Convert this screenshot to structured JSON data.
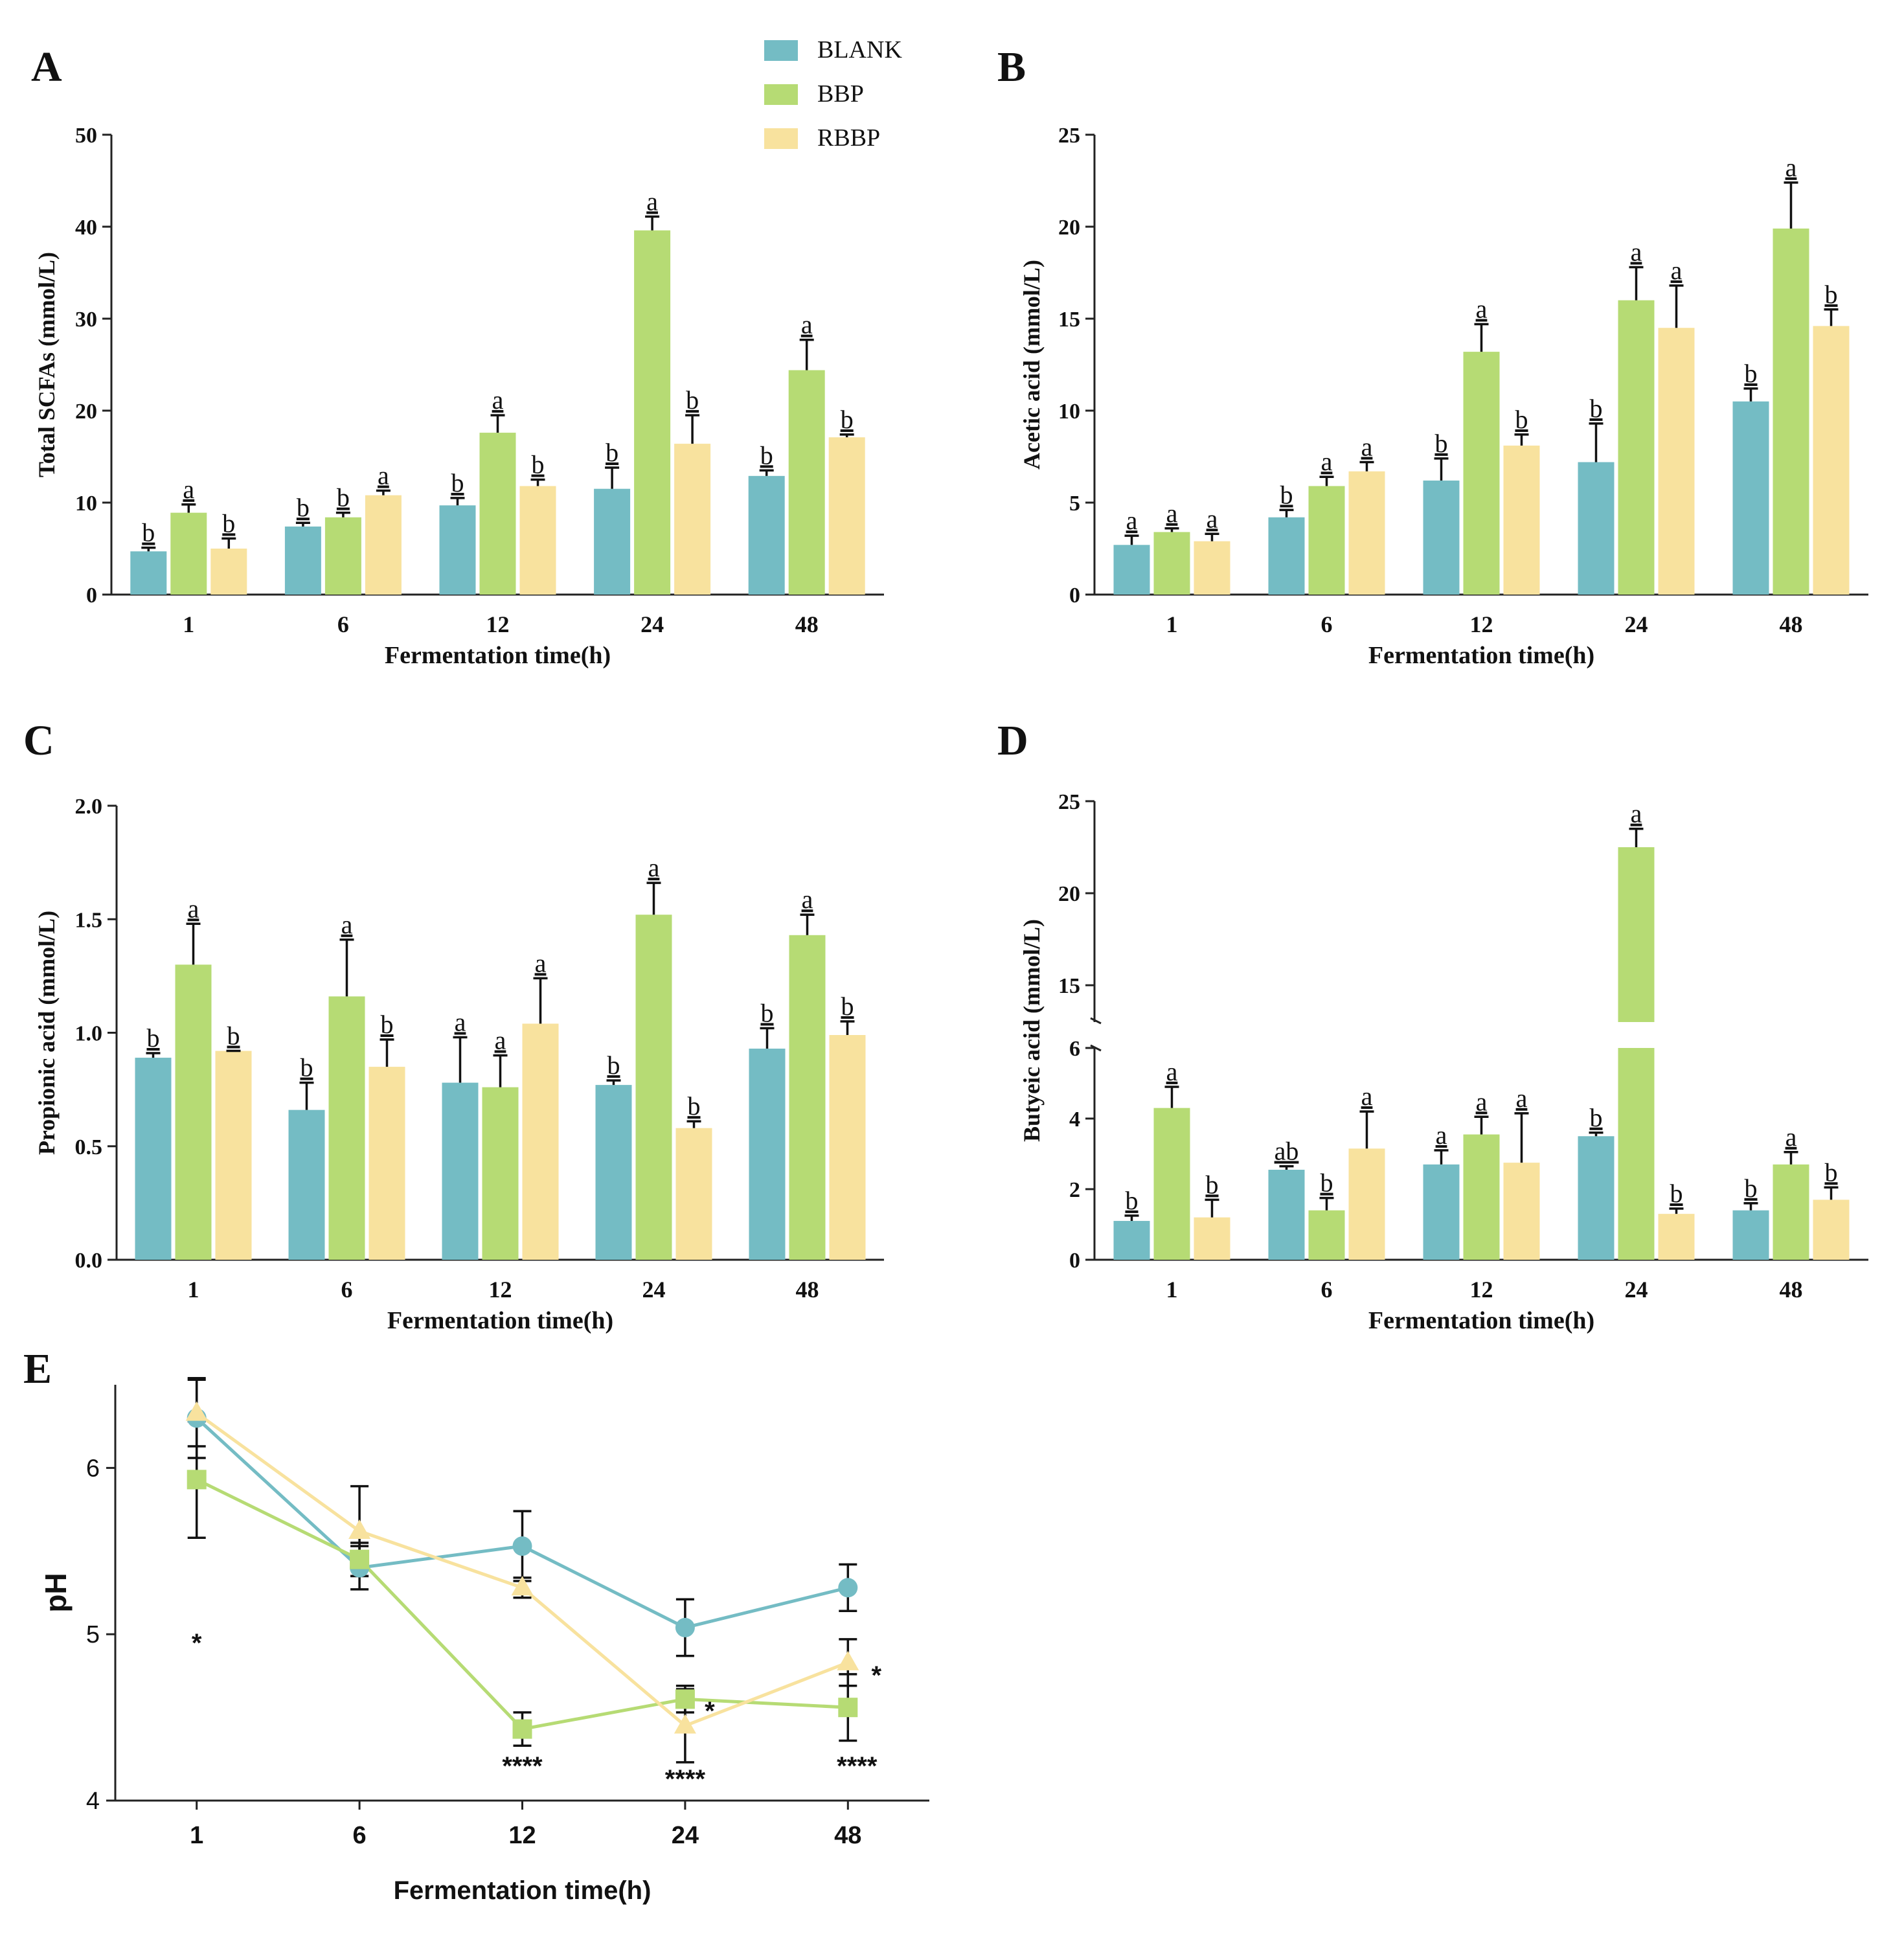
{
  "colors": {
    "blank": "#74bcc4",
    "bbp": "#b6db74",
    "rbbp": "#f8e29e",
    "axis": "#222222"
  },
  "legend": [
    {
      "key": "blank",
      "label": "BLANK"
    },
    {
      "key": "bbp",
      "label": "BBP"
    },
    {
      "key": "rbbp",
      "label": "RBBP"
    }
  ],
  "chart_data": [
    {
      "panel": "A",
      "type": "bar",
      "categories": [
        "1",
        "6",
        "12",
        "24",
        "48"
      ],
      "xlabel": "Fermentation time(h)",
      "ylabel": "Total SCFAs (mmol/L)",
      "ylim": [
        0,
        50
      ],
      "yticks": [
        "0",
        "10",
        "20",
        "30",
        "40",
        "50"
      ],
      "series": [
        {
          "name": "BLANK",
          "key": "blank",
          "values": [
            4.7,
            7.4,
            9.7,
            11.5,
            12.9
          ],
          "err": [
            0.4,
            0.4,
            0.8,
            2.3,
            0.6
          ],
          "letters": [
            "b",
            "b",
            "b",
            "b",
            "b"
          ]
        },
        {
          "name": "BBP",
          "key": "bbp",
          "values": [
            8.9,
            8.4,
            17.6,
            39.6,
            24.4
          ],
          "err": [
            0.9,
            0.5,
            1.9,
            1.5,
            3.3
          ],
          "letters": [
            "a",
            "b",
            "a",
            "a",
            "a"
          ]
        },
        {
          "name": "RBBP",
          "key": "rbbp",
          "values": [
            5.0,
            10.8,
            11.8,
            16.4,
            17.1
          ],
          "err": [
            1.1,
            0.5,
            0.7,
            3.1,
            0.3
          ],
          "letters": [
            "b",
            "a",
            "b",
            "b",
            "b"
          ]
        }
      ]
    },
    {
      "panel": "B",
      "type": "bar",
      "categories": [
        "1",
        "6",
        "12",
        "24",
        "48"
      ],
      "xlabel": "Fermentation time(h)",
      "ylabel": "Acetic acid (mmol/L)",
      "ylim": [
        0,
        25
      ],
      "yticks": [
        "0",
        "5",
        "10",
        "15",
        "20",
        "25"
      ],
      "series": [
        {
          "name": "BLANK",
          "key": "blank",
          "values": [
            2.7,
            4.2,
            6.2,
            7.2,
            10.5
          ],
          "err": [
            0.5,
            0.4,
            1.2,
            2.1,
            0.7
          ],
          "letters": [
            "a",
            "b",
            "b",
            "b",
            "b"
          ]
        },
        {
          "name": "BBP",
          "key": "bbp",
          "values": [
            3.4,
            5.9,
            13.2,
            16.0,
            19.9
          ],
          "err": [
            0.2,
            0.5,
            1.5,
            1.8,
            2.5
          ],
          "letters": [
            "a",
            "a",
            "a",
            "a",
            "a"
          ]
        },
        {
          "name": "RBBP",
          "key": "rbbp",
          "values": [
            2.9,
            6.7,
            8.1,
            14.5,
            14.6
          ],
          "err": [
            0.4,
            0.5,
            0.6,
            2.3,
            0.9
          ],
          "letters": [
            "a",
            "a",
            "b",
            "a",
            "b"
          ]
        }
      ]
    },
    {
      "panel": "C",
      "type": "bar",
      "categories": [
        "1",
        "6",
        "12",
        "24",
        "48"
      ],
      "xlabel": "Fermentation time(h)",
      "ylabel": "Propionic acid (mmol/L)",
      "ylim": [
        0,
        2.0
      ],
      "yticks": [
        "0.0",
        "0.5",
        "1.0",
        "1.5",
        "2.0"
      ],
      "series": [
        {
          "name": "BLANK",
          "key": "blank",
          "values": [
            0.89,
            0.66,
            0.78,
            0.77,
            0.93
          ],
          "err": [
            0.02,
            0.12,
            0.2,
            0.02,
            0.09
          ],
          "letters": [
            "b",
            "b",
            "a",
            "b",
            "b"
          ]
        },
        {
          "name": "BBP",
          "key": "bbp",
          "values": [
            1.3,
            1.16,
            0.76,
            1.52,
            1.43
          ],
          "err": [
            0.18,
            0.25,
            0.14,
            0.14,
            0.09
          ],
          "letters": [
            "a",
            "a",
            "a",
            "a",
            "a"
          ]
        },
        {
          "name": "RBBP",
          "key": "rbbp",
          "values": [
            0.92,
            0.85,
            1.04,
            0.58,
            0.99
          ],
          "err": [
            0.0,
            0.12,
            0.2,
            0.03,
            0.06
          ],
          "letters": [
            "b",
            "b",
            "a",
            "b",
            "b"
          ]
        }
      ]
    },
    {
      "panel": "D",
      "type": "bar",
      "categories": [
        "1",
        "6",
        "12",
        "24",
        "48"
      ],
      "xlabel": "Fermentation time(h)",
      "ylabel": "Butyeic acid (mmol/L)",
      "ylim": [
        0,
        25
      ],
      "axis_break": [
        6,
        13
      ],
      "yticks": [
        "0",
        "2",
        "4",
        "6",
        "15",
        "20",
        "25"
      ],
      "series": [
        {
          "name": "BLANK",
          "key": "blank",
          "values": [
            1.1,
            2.55,
            2.7,
            3.5,
            1.4
          ],
          "err": [
            0.15,
            0.1,
            0.4,
            0.1,
            0.2
          ],
          "letters": [
            "b",
            "ab",
            "a",
            "b",
            "b"
          ]
        },
        {
          "name": "BBP",
          "key": "bbp",
          "values": [
            4.3,
            1.4,
            3.55,
            22.5,
            2.7
          ],
          "err": [
            0.6,
            0.35,
            0.5,
            1.0,
            0.35
          ],
          "letters": [
            "a",
            "b",
            "a",
            "a",
            "a"
          ]
        },
        {
          "name": "RBBP",
          "key": "rbbp",
          "values": [
            1.2,
            3.15,
            2.75,
            1.3,
            1.7
          ],
          "err": [
            0.5,
            1.05,
            1.4,
            0.15,
            0.35
          ],
          "letters": [
            "b",
            "a",
            "a",
            "b",
            "b"
          ]
        }
      ]
    },
    {
      "panel": "E",
      "type": "line",
      "x": [
        "1",
        "6",
        "12",
        "24",
        "48"
      ],
      "xlabel": "Fermentation time(h)",
      "ylabel": "pH",
      "ylim": [
        4,
        6.5
      ],
      "yticks": [
        "4",
        "5",
        "6"
      ],
      "series": [
        {
          "name": "BLANK",
          "key": "blank",
          "marker": "circle",
          "values": [
            6.3,
            5.4,
            5.53,
            5.04,
            5.28
          ],
          "err": [
            0.24,
            0.13,
            0.21,
            0.17,
            0.14
          ],
          "sig": [
            "",
            "",
            "",
            "",
            ""
          ]
        },
        {
          "name": "BBP",
          "key": "bbp",
          "marker": "square",
          "values": [
            5.93,
            5.45,
            4.43,
            4.61,
            4.56
          ],
          "err": [
            0.35,
            0.1,
            0.1,
            0.08,
            0.2
          ],
          "sig": [
            "*",
            "",
            "****",
            "*",
            "****"
          ]
        },
        {
          "name": "RBBP",
          "key": "rbbp",
          "marker": "triangle",
          "values": [
            6.33,
            5.62,
            5.28,
            4.45,
            4.83
          ],
          "err": [
            0.2,
            0.27,
            0.06,
            0.22,
            0.14
          ],
          "sig": [
            "",
            "",
            "",
            "****",
            "*"
          ]
        }
      ]
    }
  ]
}
